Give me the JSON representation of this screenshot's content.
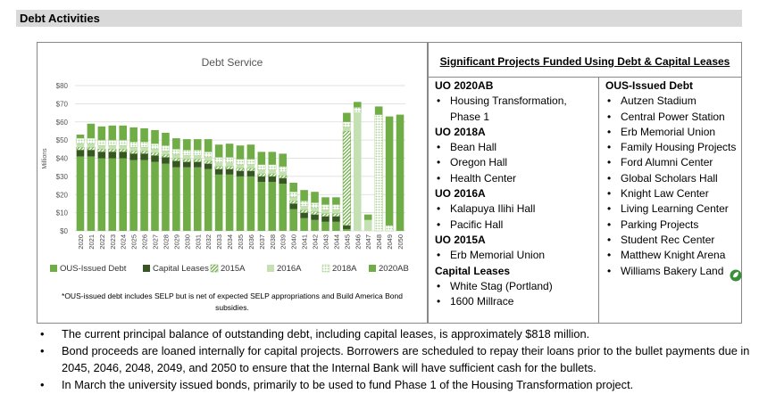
{
  "header": {
    "title": "Debt Activities"
  },
  "chart_data": {
    "type": "bar",
    "stacked": true,
    "title": "Debt Service",
    "ylabel": "Millions",
    "xlabel": "",
    "ylim": [
      0,
      80
    ],
    "yticks": [
      "$0",
      "$10",
      "$20",
      "$30",
      "$40",
      "$50",
      "$60",
      "$70",
      "$80"
    ],
    "grid": true,
    "legend_position": "bottom",
    "categories": [
      "2020",
      "2021",
      "2022",
      "2023",
      "2024",
      "2025",
      "2026",
      "2027",
      "2028",
      "2029",
      "2030",
      "2031",
      "2032",
      "2033",
      "2034",
      "2035",
      "2036",
      "2037",
      "2038",
      "2039",
      "2040",
      "2041",
      "2042",
      "2043",
      "2044",
      "2045",
      "2046",
      "2047",
      "2048",
      "2049",
      "2050"
    ],
    "series": [
      {
        "name": "OUS-Issued Debt",
        "color": "#70ad47",
        "pattern": "solid",
        "values": [
          41,
          41,
          40,
          40,
          40,
          39,
          39,
          38,
          37,
          35,
          35,
          35,
          34,
          31,
          31,
          30,
          30,
          27,
          27,
          26,
          12,
          7,
          6,
          5,
          5,
          1,
          0,
          0,
          0,
          0,
          64
        ]
      },
      {
        "name": "Capital Leases",
        "color": "#375623",
        "pattern": "solid",
        "values": [
          3.5,
          3.5,
          3.5,
          3.5,
          3.5,
          3.5,
          3.5,
          3.5,
          3.5,
          3.5,
          3,
          3,
          3,
          3,
          3,
          3,
          3,
          3,
          3,
          3,
          3,
          3,
          3,
          3,
          3,
          2,
          0,
          0,
          0,
          0,
          0
        ]
      },
      {
        "name": "2015A",
        "color": "#70ad47",
        "pattern": "diag",
        "values": [
          1.5,
          1.5,
          1.5,
          1.5,
          1.5,
          1.5,
          1.5,
          1.5,
          1.5,
          1.5,
          1.5,
          1.5,
          1.5,
          1.5,
          1.5,
          1.5,
          1.5,
          1.5,
          1.5,
          1.5,
          1.5,
          1.5,
          1.5,
          1.5,
          1.5,
          52,
          0,
          0,
          0,
          0,
          0
        ]
      },
      {
        "name": "2016A",
        "color": "#c5e0b3",
        "pattern": "solid",
        "values": [
          2,
          2,
          2,
          2,
          2,
          2,
          2,
          2,
          2,
          2,
          2,
          2,
          2,
          2,
          2,
          2,
          2,
          2,
          2,
          2,
          2,
          2,
          2,
          2,
          2,
          2,
          65,
          6,
          0,
          0,
          0
        ]
      },
      {
        "name": "2018A",
        "color": "#a9d18e",
        "pattern": "dots",
        "values": [
          3,
          3,
          3,
          3,
          3,
          3,
          3,
          3,
          3,
          3,
          3,
          3,
          3,
          3,
          3,
          3,
          3,
          3,
          3,
          3,
          3,
          3,
          3,
          3,
          3,
          3,
          3,
          0,
          64,
          3,
          0
        ]
      },
      {
        "name": "2020AB",
        "color": "#70ad47",
        "pattern": "solid",
        "values": [
          2,
          8,
          7.5,
          8,
          8,
          8,
          7.5,
          7.5,
          7,
          6,
          6,
          6,
          7,
          7,
          7.5,
          7.5,
          8,
          7,
          7,
          7,
          5,
          6,
          6,
          4,
          4,
          5,
          3,
          3,
          4.5,
          60,
          0
        ]
      }
    ],
    "footnote": "*OUS-issued debt includes SELP but is net of expected SELP appropriations and Build America Bond subsidies."
  },
  "projects": {
    "title": "Significant Projects Funded Using Debt & Capital Leases",
    "left_groups": [
      {
        "title": "UO 2020AB",
        "items": [
          "Housing Transformation, Phase 1"
        ]
      },
      {
        "title": "UO 2018A",
        "items": [
          "Bean Hall",
          "Oregon Hall",
          "Health Center"
        ]
      },
      {
        "title": "UO 2016A",
        "items": [
          "Kalapuya Ilihi Hall",
          "Pacific Hall"
        ]
      },
      {
        "title": "UO 2015A",
        "items": [
          "Erb Memorial Union"
        ]
      },
      {
        "title": "Capital Leases",
        "items": [
          "White Stag (Portland)",
          "1600 Millrace"
        ]
      }
    ],
    "right_groups": [
      {
        "title": "OUS-Issued Debt",
        "items": [
          "Autzen Stadium",
          "Central Power Station",
          "Erb Memorial Union",
          "Family Housing Projects",
          "Ford Alumni Center",
          "Global Scholars Hall",
          "Knight Law Center",
          "Living Learning Center",
          "Parking Projects",
          "Student Rec Center",
          "Matthew Knight Arena",
          "Williams Bakery Land"
        ]
      }
    ]
  },
  "bullets": [
    "The current principal balance of outstanding debt, including capital leases, is approximately $818 million.",
    "Bond proceeds are loaned internally for capital projects. Borrowers are scheduled to repay their loans prior to the bullet payments due in 2045, 2046, 2048, 2049, and 2050 to ensure that the Internal Bank will have sufficient cash for the bullets.",
    "In March the university issued bonds, primarily to be used to fund Phase 1 of the Housing Transformation project."
  ]
}
